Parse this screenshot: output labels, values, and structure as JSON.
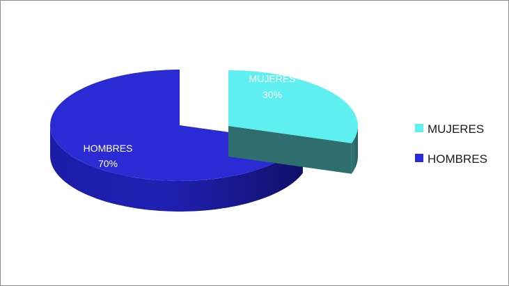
{
  "chart_data": {
    "type": "pie",
    "style": "3d-exploded",
    "title": "",
    "categories": [
      "MUJERES",
      "HOMBRES"
    ],
    "values": [
      30,
      70
    ],
    "data_labels": [
      {
        "category": "MUJERES",
        "percent": "30%"
      },
      {
        "category": "HOMBRES",
        "percent": "70%"
      }
    ],
    "colors": {
      "MUJERES_top": "#5ef0f0",
      "MUJERES_side": "#2e6e6e",
      "HOMBRES_top": "#2b2bd6",
      "HOMBRES_side": "#16168a"
    },
    "exploded": [
      "MUJERES"
    ],
    "legend": {
      "placement": "right",
      "entries": [
        {
          "label": "MUJERES",
          "color": "#5ef0f0"
        },
        {
          "label": "HOMBRES",
          "color": "#2b2bd6"
        }
      ]
    }
  }
}
